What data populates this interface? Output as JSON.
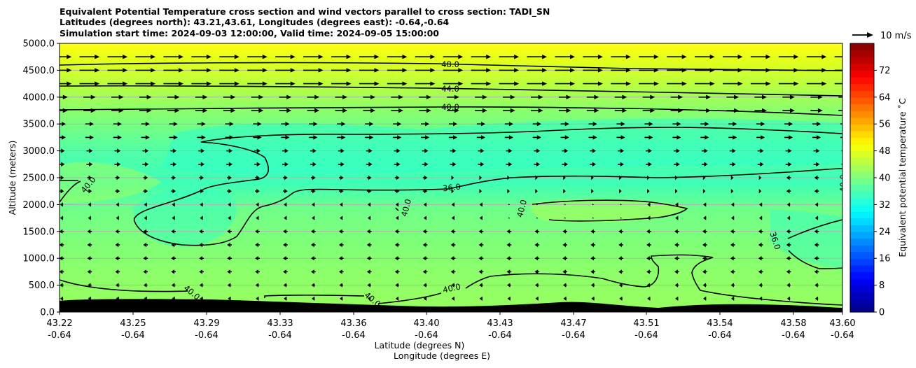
{
  "chart_data": {
    "type": "contour",
    "title_lines": [
      "Equivalent Potential Temperature cross section and wind vectors parallel to cross section: TADI_SN",
      "Latitudes (degrees north): 43.21,43.61, Longitudes (degrees east): -0.64,-0.64",
      "Simulation start time: 2024-09-03 12:00:00, Valid time: 2024-09-05 15:00:00"
    ],
    "ylabel": "Altitude (meters)",
    "xlabel_lat": "Latitude (degrees N)",
    "xlabel_lon": "Longitude (degrees E)",
    "ylim": [
      0,
      5000
    ],
    "y_ticks": [
      "0.0",
      "500.0",
      "1000.0",
      "1500.0",
      "2000.0",
      "2500.0",
      "3000.0",
      "3500.0",
      "4000.0",
      "4500.0",
      "5000.0"
    ],
    "x_ticks": [
      {
        "lat": "43.22",
        "lon": "-0.64"
      },
      {
        "lat": "43.25",
        "lon": "-0.64"
      },
      {
        "lat": "43.29",
        "lon": "-0.64"
      },
      {
        "lat": "43.33",
        "lon": "-0.64"
      },
      {
        "lat": "43.36",
        "lon": "-0.64"
      },
      {
        "lat": "43.40",
        "lon": "-0.64"
      },
      {
        "lat": "43.43",
        "lon": "-0.64"
      },
      {
        "lat": "43.47",
        "lon": "-0.64"
      },
      {
        "lat": "43.51",
        "lon": "-0.64"
      },
      {
        "lat": "43.54",
        "lon": "-0.64"
      },
      {
        "lat": "43.58",
        "lon": "-0.64"
      },
      {
        "lat": "43.60",
        "lon": "-0.64"
      }
    ],
    "grid": true,
    "colorbar": {
      "label": "Equivalent potential temperature $^\\circ$C",
      "label_display": "Equivalent potential temperature ˚C",
      "range": [
        0,
        80
      ],
      "ticks": [
        "0",
        "8",
        "16",
        "24",
        "32",
        "40",
        "48",
        "56",
        "64",
        "72"
      ]
    },
    "quiver_key": {
      "label": "10 m/s",
      "speed_ms": 10
    },
    "contour_labels": [
      "48.0",
      "44.0",
      "40.0",
      "36.0",
      "40.0",
      "40.0",
      "40.0",
      "40.0",
      "36.0",
      "40.0",
      "40.0",
      "40.0",
      "36.0"
    ],
    "terrain_color": "#000000"
  }
}
